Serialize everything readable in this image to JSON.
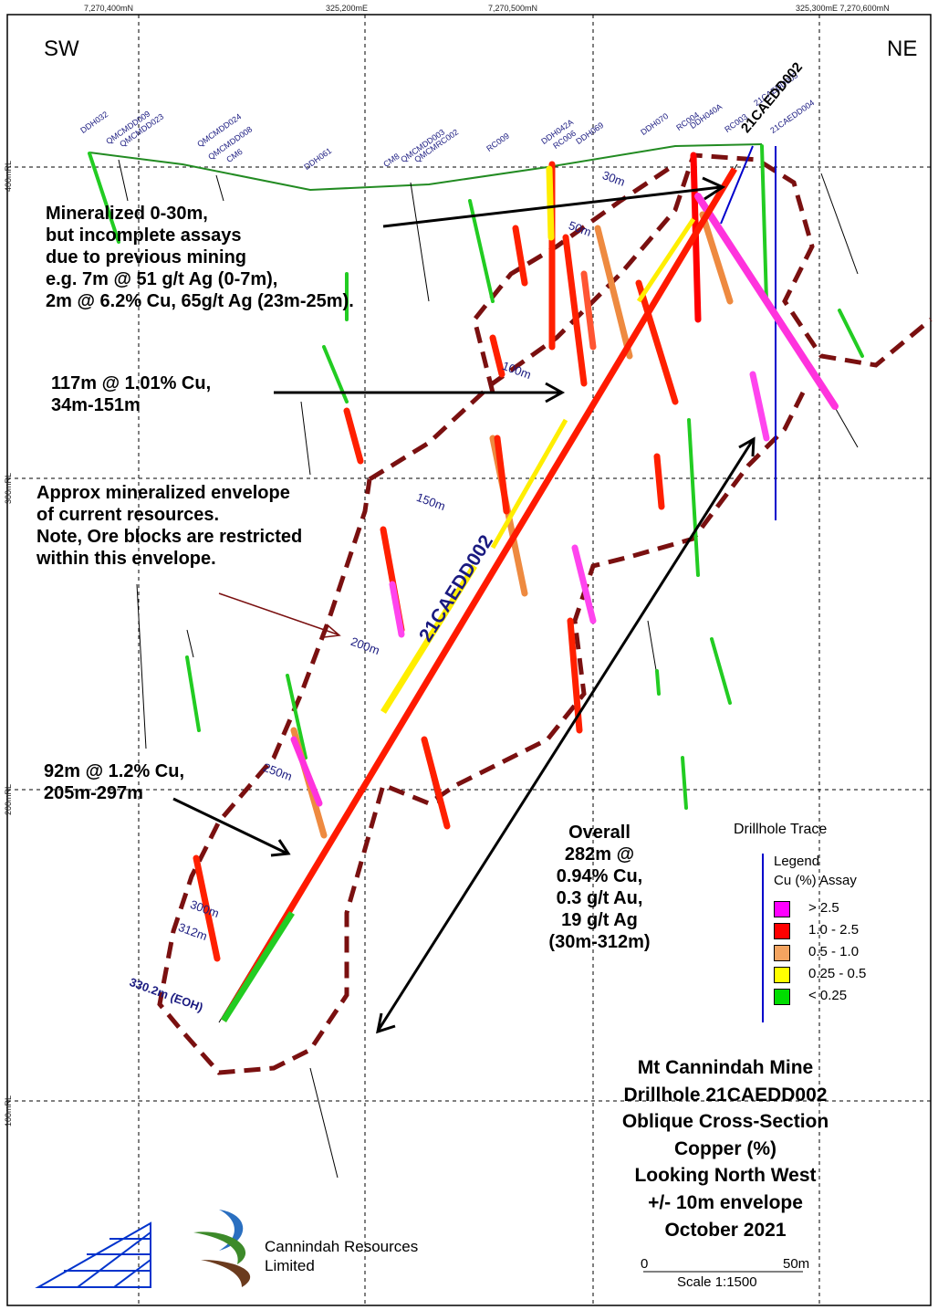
{
  "grid": {
    "top_labels": [
      "7,270,400mN",
      "325,200mE",
      "7,270,500mN",
      "325,300mE 7,270,600mN"
    ],
    "rl_labels": [
      "400mRL",
      "300mRL",
      "200mRL",
      "100mRL"
    ]
  },
  "orientation": {
    "sw": "SW",
    "ne": "NE"
  },
  "hole_labels": [
    "DDH032",
    "QMCMDD009",
    "QMCMDD023",
    "QMCMDD024",
    "QMCMDD008",
    "CM6",
    "DDH061",
    "CM8",
    "QMCMDD003",
    "QMCMRC002",
    "RC009",
    "DDH042A",
    "RC006",
    "DDH069",
    "DDH070",
    "RC004",
    "DDH040A",
    "RC003",
    "21CAEDD003",
    "21CAEDD004"
  ],
  "main_hole": {
    "label_top": "21CAEDD002",
    "label_mid": "21CAEDD002"
  },
  "depth_marks": [
    "30m",
    "50m",
    "100m",
    "150m",
    "200m",
    "250m",
    "300m",
    "312m",
    "330.2m (EOH)"
  ],
  "annotations": {
    "a1": [
      "Mineralized 0-30m,",
      "but incomplete assays",
      "due to previous mining",
      "e.g. 7m @ 51 g/t Ag (0-7m),",
      "2m @ 6.2% Cu, 65g/t Ag (23m-25m)."
    ],
    "a2": [
      "117m @ 1.01% Cu,",
      "34m-151m"
    ],
    "a3": [
      "Approx mineralized envelope",
      "of current resources.",
      "Note, Ore blocks are restricted",
      "within this envelope."
    ],
    "a4": [
      "92m @ 1.2% Cu,",
      "205m-297m"
    ],
    "overall": [
      "Overall",
      "282m @",
      "0.94% Cu,",
      "0.3 g/t Au,",
      "19 g/t Ag",
      "(30m-312m)"
    ]
  },
  "legend": {
    "trace_title": "Drillhole Trace",
    "title1": "Legend",
    "title2": "Cu (%) Assay",
    "items": [
      {
        "label": "> 2.5",
        "color": "#ff00ff"
      },
      {
        "label": "1.0 - 2.5",
        "color": "#ff0000"
      },
      {
        "label": "0.5 - 1.0",
        "color": "#f4a460"
      },
      {
        "label": "0.25 - 0.5",
        "color": "#ffff00"
      },
      {
        "label": "< 0.25",
        "color": "#00dd00"
      }
    ]
  },
  "title_block": [
    "Mt Cannindah Mine",
    "Drillhole 21CAEDD002",
    "Oblique Cross-Section",
    "Copper (%)",
    "Looking North West",
    "+/- 10m envelope",
    "October 2021"
  ],
  "scale": {
    "zero": "0",
    "fifty": "50m",
    "text": "Scale  1:1500"
  },
  "company": [
    "Cannindah Resources",
    "Limited"
  ],
  "colors": {
    "envelope": "#7a1010",
    "surface": "#228b22",
    "label_blue": "#1a1a80",
    "trace_blue": "#0000cc"
  }
}
